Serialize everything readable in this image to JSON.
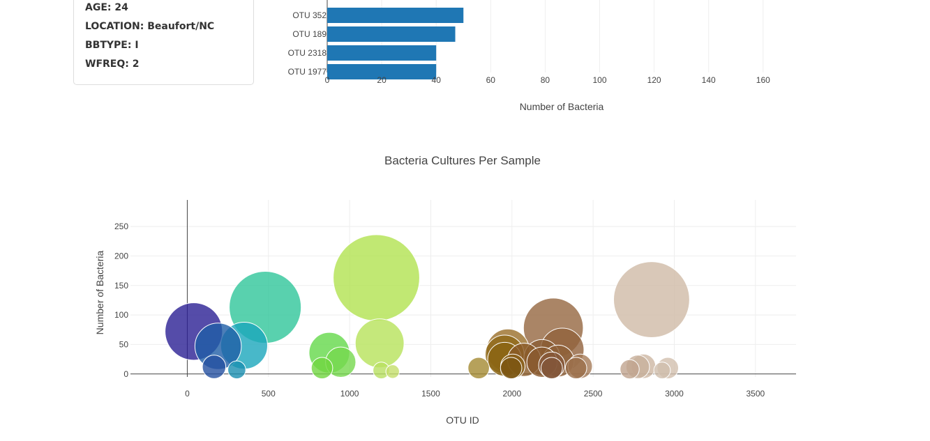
{
  "demographics": {
    "rows": [
      {
        "label": "AGE:",
        "value": "24"
      },
      {
        "label": "LOCATION:",
        "value": "Beaufort/NC"
      },
      {
        "label": "BBTYPE:",
        "value": "I"
      },
      {
        "label": "WFREQ:",
        "value": "2"
      }
    ]
  },
  "chart_data": [
    {
      "type": "bar",
      "orientation": "horizontal",
      "categories": [
        "OTU 352",
        "OTU 189",
        "OTU 2318",
        "OTU 1977"
      ],
      "values": [
        50,
        47,
        40,
        40
      ],
      "xlabel": "Number of Bacteria",
      "xticks": [
        0,
        20,
        40,
        60,
        80,
        100,
        120,
        140,
        160
      ],
      "xlim": [
        0,
        167
      ],
      "grid": true,
      "color": "#1f77b4"
    },
    {
      "type": "scatter",
      "style": "bubble",
      "title": "Bacteria Cultures Per Sample",
      "xlabel": "OTU ID",
      "ylabel": "Number of Bacteria",
      "xlim": [
        -350,
        3750
      ],
      "ylim": [
        -5,
        295
      ],
      "xticks": [
        0,
        500,
        1000,
        1500,
        2000,
        2500,
        3000,
        3500
      ],
      "yticks": [
        0,
        50,
        100,
        150,
        200,
        250
      ],
      "grid": true,
      "colorscale": "Earth",
      "points": [
        {
          "x": 40,
          "y": 72,
          "color": "#2a1f94"
        },
        {
          "x": 190,
          "y": 47,
          "color": "#1f5ea6"
        },
        {
          "x": 165,
          "y": 12,
          "color": "#2450a0"
        },
        {
          "x": 350,
          "y": 48,
          "color": "#1aa6bc"
        },
        {
          "x": 305,
          "y": 7,
          "color": "#1a8fb0"
        },
        {
          "x": 480,
          "y": 113,
          "color": "#2fc69a"
        },
        {
          "x": 875,
          "y": 36,
          "color": "#64d84a"
        },
        {
          "x": 945,
          "y": 20,
          "color": "#76d84e"
        },
        {
          "x": 830,
          "y": 10,
          "color": "#70d640"
        },
        {
          "x": 1165,
          "y": 163,
          "color": "#b2e250"
        },
        {
          "x": 1185,
          "y": 52,
          "color": "#b6e25a"
        },
        {
          "x": 1195,
          "y": 6,
          "color": "#b8e060"
        },
        {
          "x": 1265,
          "y": 4,
          "color": "#c4de6a"
        },
        {
          "x": 1795,
          "y": 10,
          "color": "#a48a32"
        },
        {
          "x": 1975,
          "y": 40,
          "color": "#9a6e28"
        },
        {
          "x": 1955,
          "y": 33,
          "color": "#8e6818"
        },
        {
          "x": 1955,
          "y": 25,
          "color": "#8a6412"
        },
        {
          "x": 2005,
          "y": 13,
          "color": "#8a6018"
        },
        {
          "x": 1995,
          "y": 10,
          "color": "#7a5512"
        },
        {
          "x": 2075,
          "y": 24,
          "color": "#8a5a28"
        },
        {
          "x": 2185,
          "y": 28,
          "color": "#8a5c34"
        },
        {
          "x": 2185,
          "y": 20,
          "color": "#8a5a30"
        },
        {
          "x": 2255,
          "y": 78,
          "color": "#956640"
        },
        {
          "x": 2310,
          "y": 41,
          "color": "#91623c"
        },
        {
          "x": 2285,
          "y": 22,
          "color": "#8e6038"
        },
        {
          "x": 2245,
          "y": 15,
          "color": "#86583a"
        },
        {
          "x": 2245,
          "y": 10,
          "color": "#82563a"
        },
        {
          "x": 2395,
          "y": 10,
          "color": "#9a6e4a"
        },
        {
          "x": 2420,
          "y": 13,
          "color": "#a57a58"
        },
        {
          "x": 2860,
          "y": 126,
          "color": "#cfbaa6"
        },
        {
          "x": 2775,
          "y": 12,
          "color": "#c8b09c"
        },
        {
          "x": 2810,
          "y": 13,
          "color": "#cdb6a2"
        },
        {
          "x": 2960,
          "y": 10,
          "color": "#d2bfae"
        },
        {
          "x": 2725,
          "y": 8,
          "color": "#c0a48e"
        },
        {
          "x": 2925,
          "y": 6,
          "color": "#d0beac"
        }
      ]
    }
  ]
}
